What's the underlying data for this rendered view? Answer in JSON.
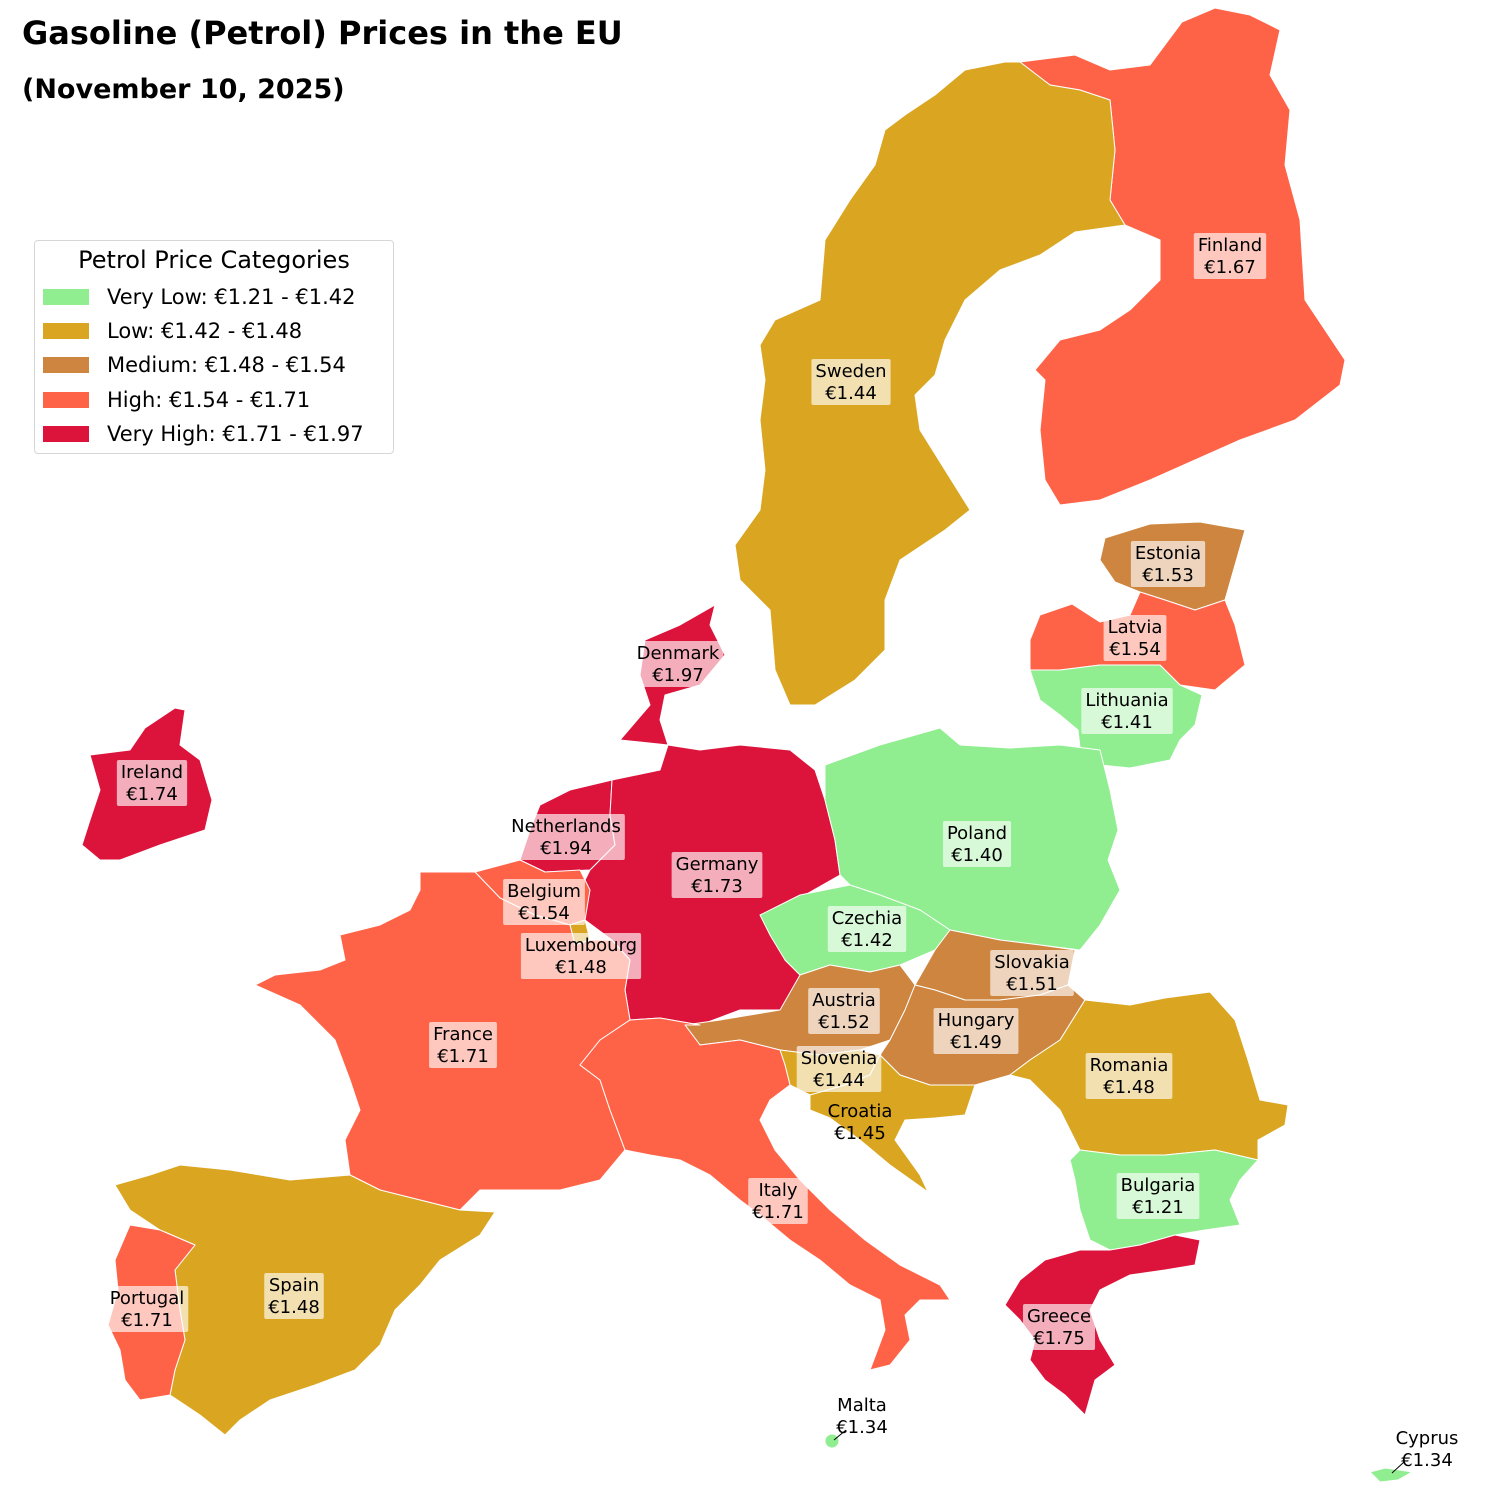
{
  "title": "Gasoline (Petrol) Prices in the EU",
  "subtitle": "(November 10, 2025)",
  "legend": {
    "title": "Petrol Price Categories",
    "items": [
      {
        "label": "Very Low: €1.21 - €1.42",
        "color": "#90ee90"
      },
      {
        "label": "Low: €1.42 - €1.48",
        "color": "#daa520"
      },
      {
        "label": "Medium: €1.48 - €1.54",
        "color": "#cd853f"
      },
      {
        "label": "High: €1.54 - €1.71",
        "color": "#ff6347"
      },
      {
        "label": "Very High: €1.71 - €1.97",
        "color": "#dc143c"
      }
    ]
  },
  "countries": [
    {
      "id": "finland",
      "name": "Finland",
      "price": "€1.67",
      "category": 3
    },
    {
      "id": "sweden",
      "name": "Sweden",
      "price": "€1.44",
      "category": 1
    },
    {
      "id": "estonia",
      "name": "Estonia",
      "price": "€1.53",
      "category": 2
    },
    {
      "id": "latvia",
      "name": "Latvia",
      "price": "€1.54",
      "category": 3
    },
    {
      "id": "lithuania",
      "name": "Lithuania",
      "price": "€1.41",
      "category": 0
    },
    {
      "id": "denmark",
      "name": "Denmark",
      "price": "€1.97",
      "category": 4
    },
    {
      "id": "ireland",
      "name": "Ireland",
      "price": "€1.74",
      "category": 4
    },
    {
      "id": "netherlands",
      "name": "Netherlands",
      "price": "€1.94",
      "category": 4
    },
    {
      "id": "germany",
      "name": "Germany",
      "price": "€1.73",
      "category": 4
    },
    {
      "id": "poland",
      "name": "Poland",
      "price": "€1.40",
      "category": 0
    },
    {
      "id": "belgium",
      "name": "Belgium",
      "price": "€1.54",
      "category": 3
    },
    {
      "id": "luxembourg",
      "name": "Luxembourg",
      "price": "€1.48",
      "category": 1
    },
    {
      "id": "czechia",
      "name": "Czechia",
      "price": "€1.42",
      "category": 0
    },
    {
      "id": "slovakia",
      "name": "Slovakia",
      "price": "€1.51",
      "category": 2
    },
    {
      "id": "austria",
      "name": "Austria",
      "price": "€1.52",
      "category": 2
    },
    {
      "id": "hungary",
      "name": "Hungary",
      "price": "€1.49",
      "category": 2
    },
    {
      "id": "france",
      "name": "France",
      "price": "€1.71",
      "category": 3
    },
    {
      "id": "slovenia",
      "name": "Slovenia",
      "price": "€1.44",
      "category": 1
    },
    {
      "id": "romania",
      "name": "Romania",
      "price": "€1.48",
      "category": 1
    },
    {
      "id": "croatia",
      "name": "Croatia",
      "price": "€1.45",
      "category": 1
    },
    {
      "id": "italy",
      "name": "Italy",
      "price": "€1.71",
      "category": 3
    },
    {
      "id": "bulgaria",
      "name": "Bulgaria",
      "price": "€1.21",
      "category": 0
    },
    {
      "id": "spain",
      "name": "Spain",
      "price": "€1.48",
      "category": 1
    },
    {
      "id": "portugal",
      "name": "Portugal",
      "price": "€1.71",
      "category": 3
    },
    {
      "id": "greece",
      "name": "Greece",
      "price": "€1.75",
      "category": 4
    },
    {
      "id": "malta",
      "name": "Malta",
      "price": "€1.34",
      "category": 0
    },
    {
      "id": "cyprus",
      "name": "Cyprus",
      "price": "€1.34",
      "category": 0
    }
  ]
}
